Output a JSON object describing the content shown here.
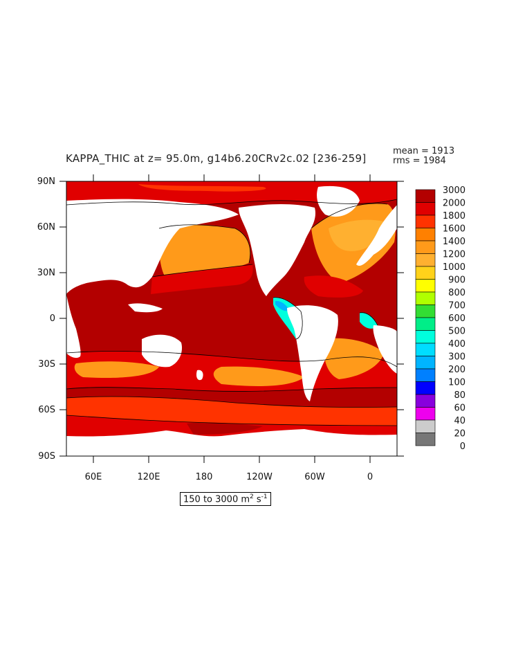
{
  "title": "KAPPA_THIC at z=  95.0m, g14b6.20CRv2c.02 [236-259]",
  "stats": {
    "mean": "mean = 1913",
    "rms": "rms = 1984"
  },
  "range": {
    "text_prefix": "150 to 3000 m",
    "sup1": "2",
    "mid": " s",
    "sup2": "-1"
  },
  "axes": {
    "lat_labels": [
      "90N",
      "60N",
      "30N",
      "0",
      "30S",
      "60S",
      "90S"
    ],
    "lon_labels": [
      "60E",
      "120E",
      "180",
      "120W",
      "60W",
      "0"
    ]
  },
  "colorbar": {
    "levels": [
      "3000",
      "2000",
      "1800",
      "1600",
      "1400",
      "1200",
      "1000",
      "900",
      "800",
      "700",
      "600",
      "500",
      "400",
      "300",
      "200",
      "100",
      "80",
      "60",
      "40",
      "20",
      "0"
    ],
    "colors": [
      "#b30000",
      "#e00000",
      "#ff3300",
      "#ff8000",
      "#ff9a1a",
      "#ffb030",
      "#ffd21a",
      "#ffff00",
      "#b0ff00",
      "#33dd33",
      "#00ee88",
      "#00ffdd",
      "#00ddff",
      "#00b4ff",
      "#0080ff",
      "#0000ff",
      "#8800dd",
      "#ee00ee",
      "#cccccc",
      "#777777"
    ]
  },
  "map_colors": {
    "deep_red": "#b30000",
    "red": "#e00000",
    "orange_red": "#ff3300",
    "orange": "#ff8000",
    "light_orange": "#ff9a1a",
    "pale_orange": "#ffb030",
    "cyan": "#00ffdd",
    "land": "#ffffff"
  }
}
